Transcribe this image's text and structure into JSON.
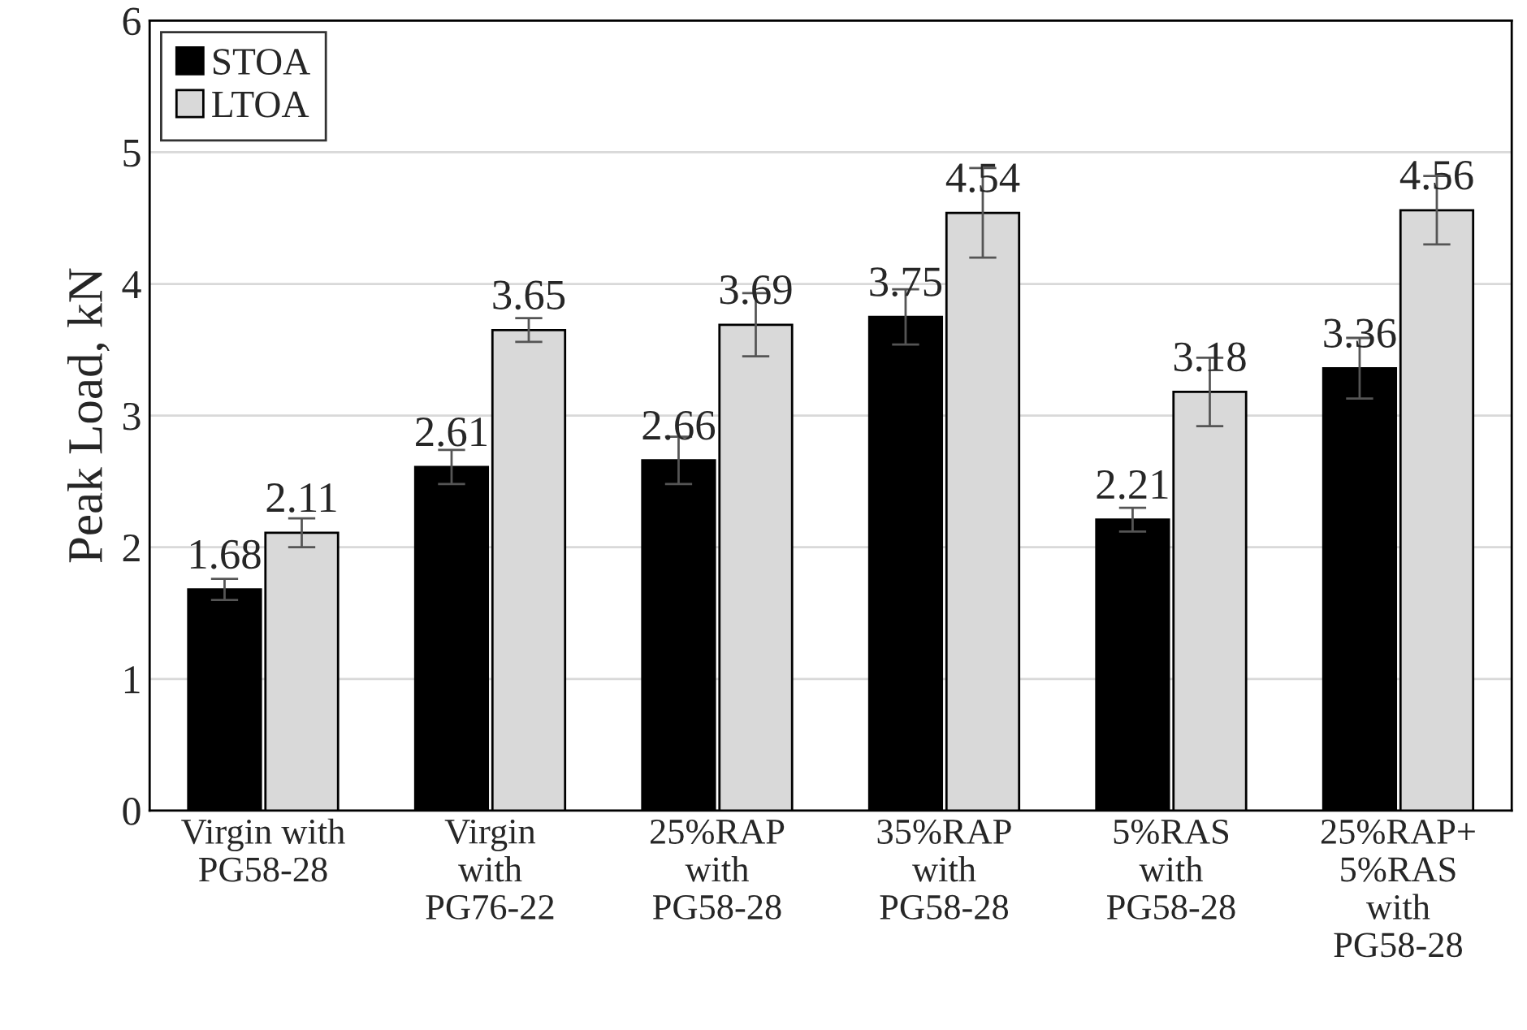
{
  "chart_data": {
    "type": "bar",
    "ylabel": "Peak Load, kN",
    "categories": [
      "Virgin with\nPG58-28",
      "Virgin\nwith\nPG76-22",
      "25%RAP\nwith\nPG58-28",
      "35%RAP\nwith\nPG58-28",
      "5%RAS\nwith\nPG58-28",
      "25%RAP+\n5%RAS\nwith\nPG58-28"
    ],
    "series": [
      {
        "name": "STOA",
        "color": "#000000",
        "values": [
          1.68,
          2.61,
          2.66,
          3.75,
          2.21,
          3.36
        ],
        "errors": [
          0.08,
          0.13,
          0.18,
          0.21,
          0.09,
          0.23
        ]
      },
      {
        "name": "LTOA",
        "color": "#d9d9d9",
        "values": [
          2.11,
          3.65,
          3.69,
          4.54,
          3.18,
          4.56
        ],
        "errors": [
          0.11,
          0.09,
          0.24,
          0.34,
          0.26,
          0.26
        ]
      }
    ],
    "ylim": [
      0,
      6
    ],
    "yticks": [
      0,
      1,
      2,
      3,
      4,
      5,
      6
    ],
    "grid": "y",
    "legend": "top left",
    "data_labels": true
  }
}
